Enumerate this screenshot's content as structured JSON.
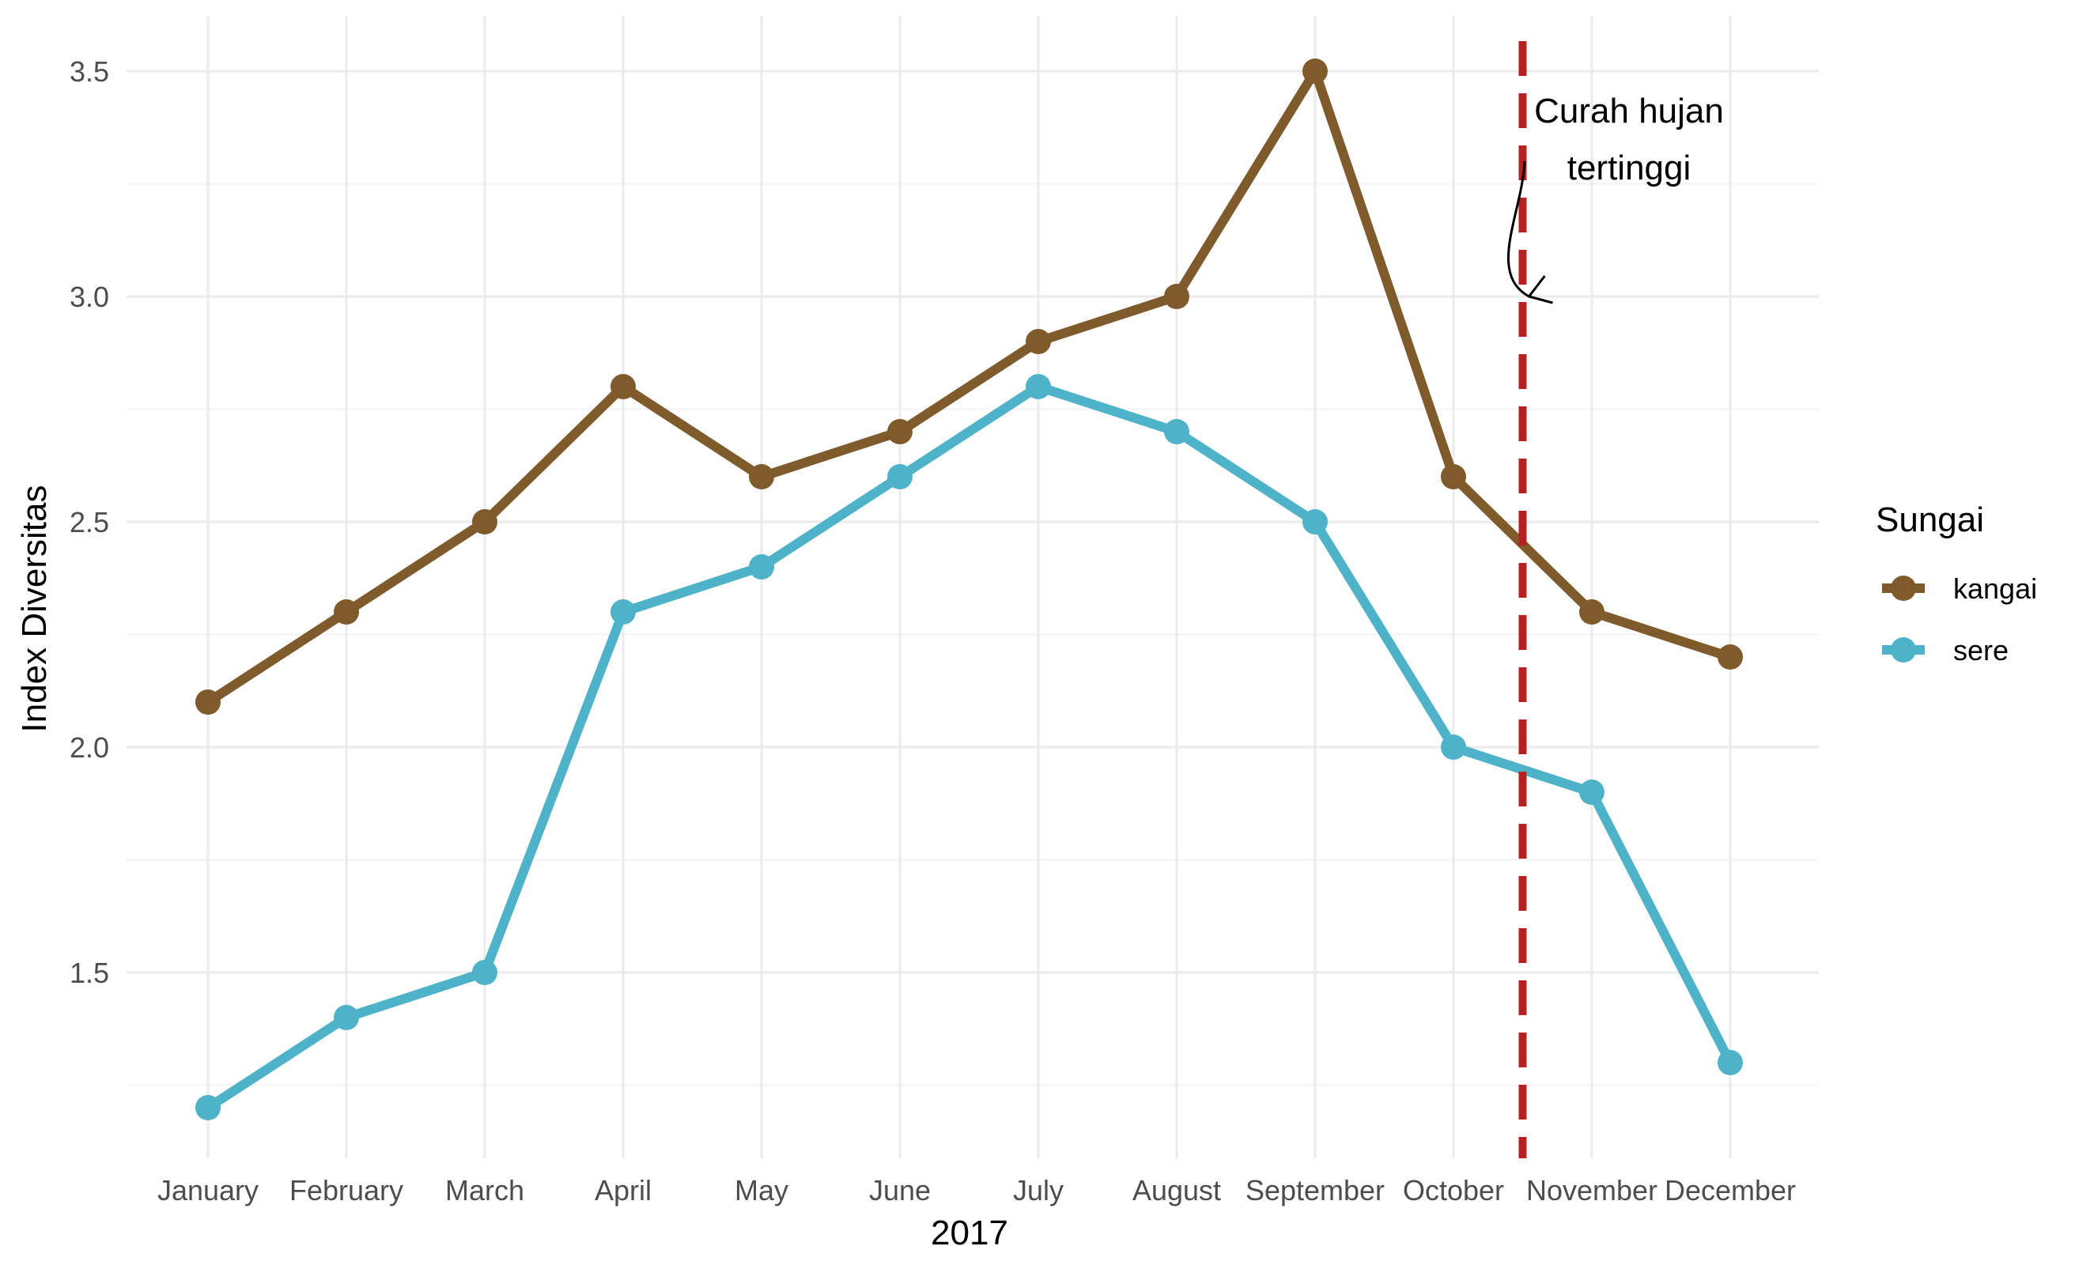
{
  "chart_data": {
    "type": "line",
    "title": "",
    "xlabel": "2017",
    "ylabel": "Index Diversitas",
    "categories": [
      "January",
      "February",
      "March",
      "April",
      "May",
      "June",
      "July",
      "August",
      "September",
      "October",
      "November",
      "December"
    ],
    "ylim": [
      1.1,
      3.6
    ],
    "yticks": [
      1.5,
      2.0,
      2.5,
      3.0,
      3.5
    ],
    "ytick_labels": [
      "1.5",
      "2.0",
      "2.5",
      "3.0",
      "3.5"
    ],
    "grid": true,
    "series": [
      {
        "name": "kangai",
        "color": "#7F5A2A",
        "values": [
          2.1,
          2.3,
          2.5,
          2.8,
          2.6,
          2.7,
          2.9,
          3.0,
          3.5,
          2.6,
          2.3,
          2.2
        ]
      },
      {
        "name": "sere",
        "color": "#4EB3C9",
        "values": [
          1.2,
          1.4,
          1.5,
          2.3,
          2.4,
          2.6,
          2.8,
          2.7,
          2.5,
          2.0,
          1.9,
          1.3
        ]
      }
    ],
    "legend": {
      "title": "Sungai",
      "placement": "right"
    },
    "vline": {
      "x": 9.5,
      "color": "#B22222",
      "style": "dashed"
    },
    "annotation": {
      "lines": [
        "Curah hujan",
        "tertinggi"
      ],
      "arrow_target": {
        "x": 9.5,
        "y": 3.0
      }
    }
  }
}
